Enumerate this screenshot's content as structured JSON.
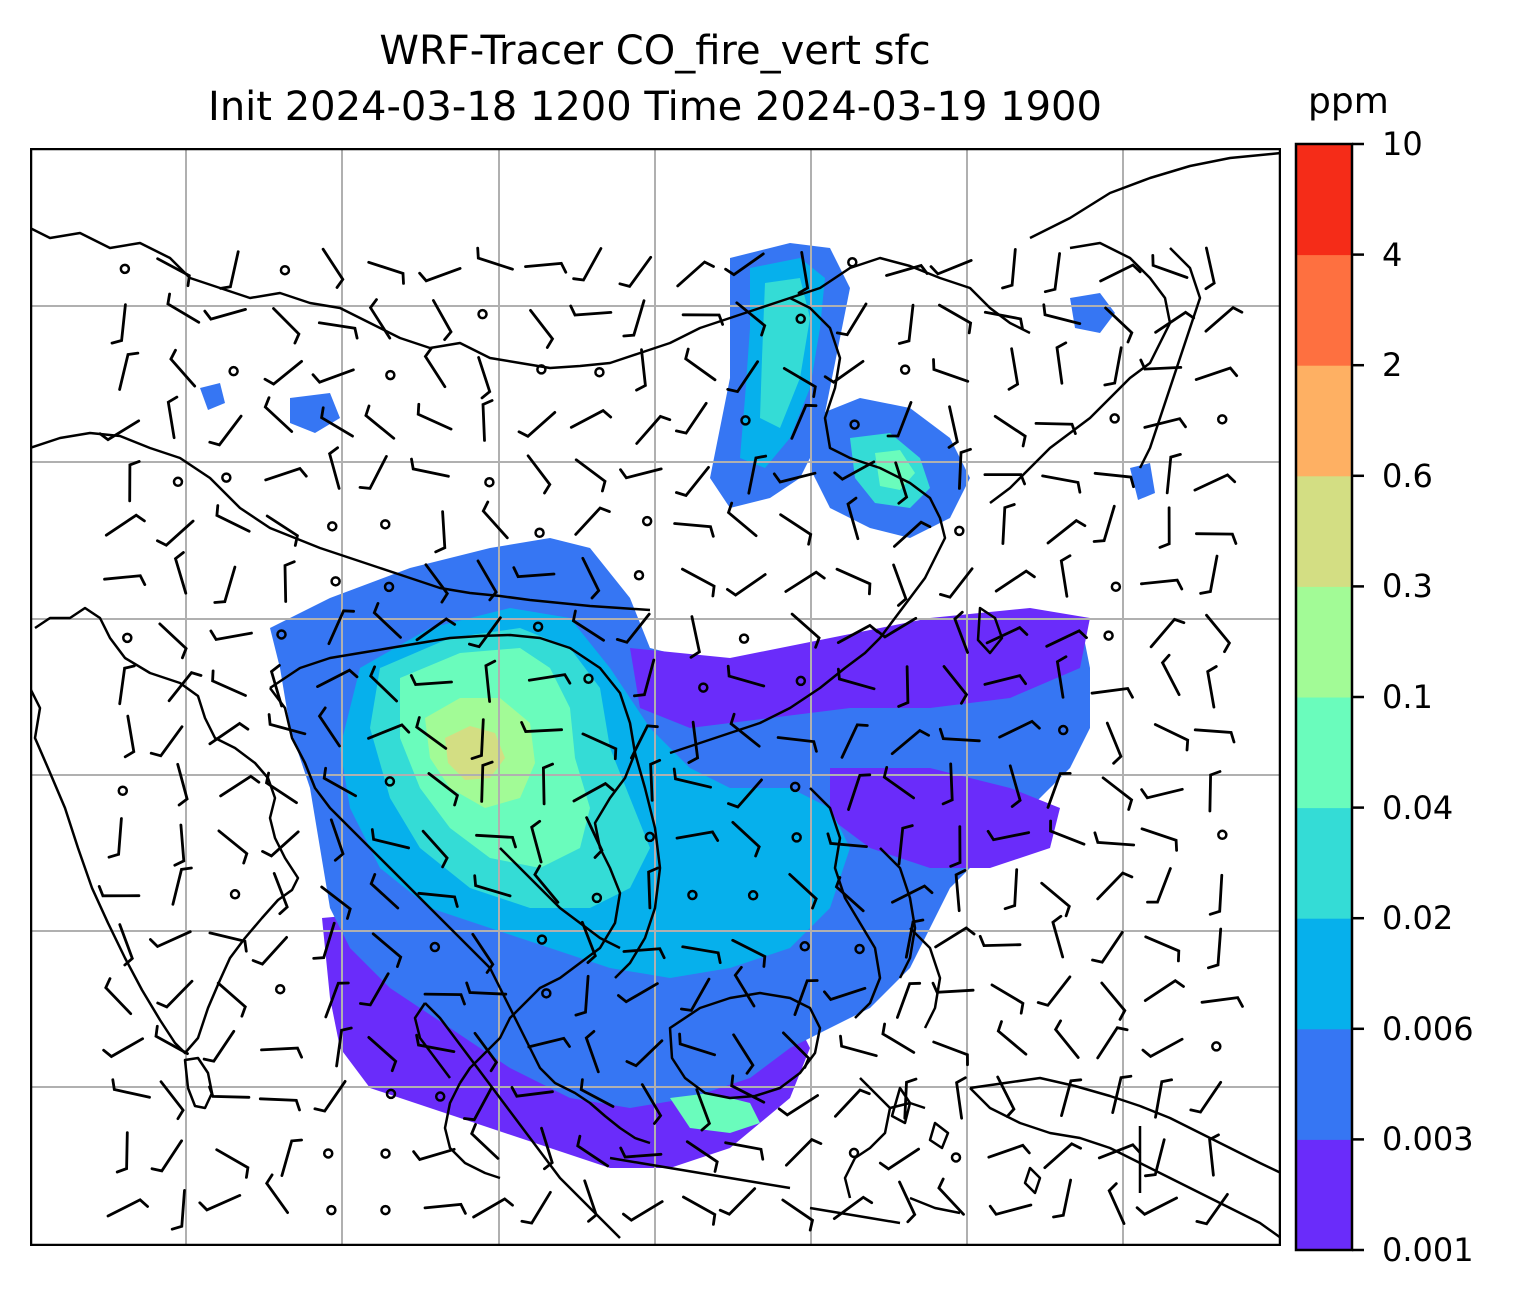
{
  "title_line1": "WRF-Tracer CO_fire_vert sfc",
  "title_line2": "Init 2024-03-18 1200 Time 2024-03-19 1900",
  "colorbar": {
    "unit": "ppm",
    "levels": [
      "0.001",
      "0.003",
      "0.006",
      "0.02",
      "0.04",
      "0.1",
      "0.3",
      "0.6",
      "2",
      "4",
      "10"
    ],
    "colors": [
      "#6a2cfa",
      "#3676f3",
      "#06b0ec",
      "#34dcd6",
      "#6afcbc",
      "#a2fb96",
      "#d3de83",
      "#feb063",
      "#fe7040",
      "#f52c18"
    ]
  },
  "map": {
    "gridlines": true,
    "grid_color": "#b0b0b0",
    "coastline_color": "#000000",
    "wind_barbs": true
  }
}
